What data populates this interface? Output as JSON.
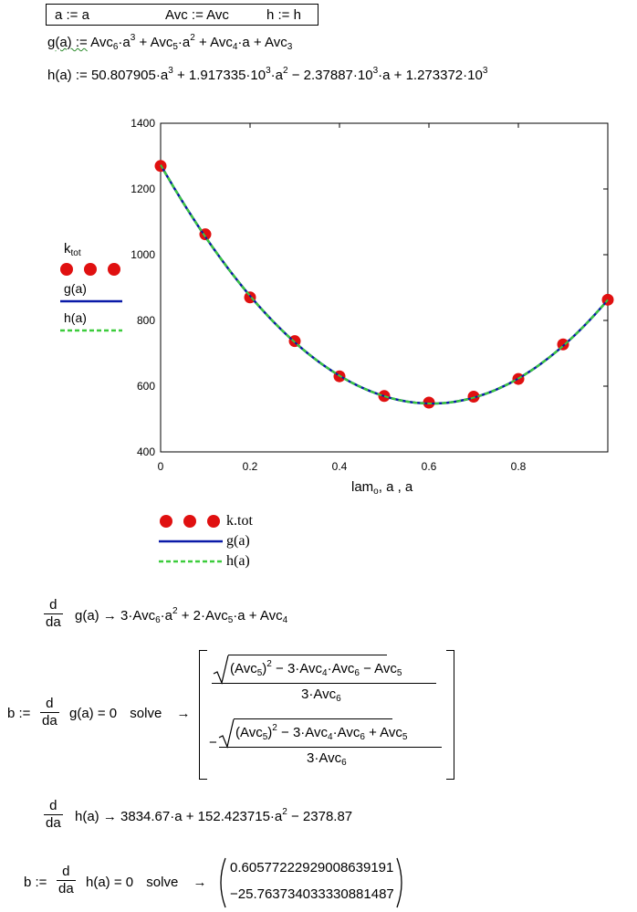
{
  "definitions": {
    "a_def": "a := a",
    "avc_def": "Avc := Avc",
    "h_def": "h := h"
  },
  "g_def": {
    "lhs": "g(a) :=",
    "t1": "Avc",
    "t1_sub": "6",
    "t1_rest": "·a",
    "t1_pow": "3",
    "t2": "+ Avc",
    "t2_sub": "5",
    "t2_rest": "·a",
    "t2_pow": "2",
    "t3": "+ Avc",
    "t3_sub": "4",
    "t3_rest": "·a + Avc",
    "t3_sub2": "3"
  },
  "h_def": {
    "lhs": "h(a) :=",
    "p1": "50.807905·a",
    "p1_pow": "3",
    "p2": "+ 1.917335·10",
    "p2_pow": "3",
    "p2_rest": "·a",
    "p2_pow2": "2",
    "p3": "− 2.37887·10",
    "p3_pow": "3",
    "p3_rest": "·a + 1.273372·10",
    "p3_pow2": "3"
  },
  "chart_data": {
    "type": "line",
    "xlabel": "lam",
    "xlabel_sub": "o",
    "xlabel_rest": ", a , a",
    "xlim": [
      0,
      1
    ],
    "ylim": [
      400,
      1400
    ],
    "x_ticks": [
      "0",
      "0.2",
      "0.4",
      "0.6",
      "0.8"
    ],
    "x_tick_values": [
      0,
      0.2,
      0.4,
      0.6,
      0.8
    ],
    "y_ticks": [
      "400",
      "600",
      "800",
      "1000",
      "1200",
      "1400"
    ],
    "y_tick_values": [
      400,
      600,
      800,
      1000,
      1200,
      1400
    ],
    "series": [
      {
        "name": "k.tot",
        "kind": "points",
        "color": "#e01010",
        "x": [
          0,
          0.1,
          0.2,
          0.3,
          0.4,
          0.5,
          0.6,
          0.7,
          0.8,
          0.9,
          1.0
        ],
        "y": [
          1270,
          1062,
          870,
          737,
          630,
          570,
          550,
          568,
          622,
          727,
          863
        ]
      },
      {
        "name": "g(a)",
        "kind": "line",
        "color": "#0a1aa8",
        "coefficients": [
          1273.372,
          -2378.87,
          1917.335,
          50.807905
        ]
      },
      {
        "name": "h(a)",
        "kind": "dashed",
        "color": "#3ccc3c",
        "coefficients": [
          1273.372,
          -2378.87,
          1917.335,
          50.807905
        ]
      }
    ]
  },
  "left_legend": {
    "k_label": "k",
    "k_sub": "tot",
    "g_label": "g(a)",
    "h_label": "h(a)"
  },
  "bottom_legend": {
    "k_label": "k.tot",
    "g_label": "g(a)",
    "h_label": "h(a)"
  },
  "deriv_g": {
    "d_num": "d",
    "d_den": "da",
    "func": "g(a) →",
    "r1": "3·Avc",
    "r1_sub": "6",
    "r1_rest": "·a",
    "r1_pow": "2",
    "r2": "+ 2·Avc",
    "r2_sub": "5",
    "r2_rest": "·a + Avc",
    "r2_sub2": "4"
  },
  "solve_g": {
    "lhs": "b :=",
    "d_num": "d",
    "d_den": "da",
    "func": "g(a) = 0",
    "kw": "solve",
    "arrow": "→",
    "m1_sqrt_a": "(Avc",
    "m1_sqrt_a_sub": "5",
    "m1_sqrt_a_close": ")",
    "m1_sqrt_pow": "2",
    "m1_sqrt_b": "− 3·Avc",
    "m1_sqrt_b_sub1": "4",
    "m1_sqrt_b_mid": "·Avc",
    "m1_sqrt_b_sub2": "6",
    "m1_tail": "− Avc",
    "m1_tail_sub": "5",
    "m_den": "3·Avc",
    "m_den_sub": "6",
    "m2_sign": "−",
    "m2_tail": "+ Avc",
    "m2_tail_sub": "5"
  },
  "deriv_h": {
    "d_num": "d",
    "d_den": "da",
    "func": "h(a) →",
    "expr": "3834.67·a + 152.423715·a",
    "expr_pow": "2",
    "expr_rest": "− 2378.87"
  },
  "solve_h": {
    "lhs": "b :=",
    "d_num": "d",
    "d_den": "da",
    "func": "h(a) = 0",
    "kw": "solve",
    "arrow": "→",
    "v1": "0.60577222929008639191",
    "v2": "−25.763734033330881487"
  }
}
